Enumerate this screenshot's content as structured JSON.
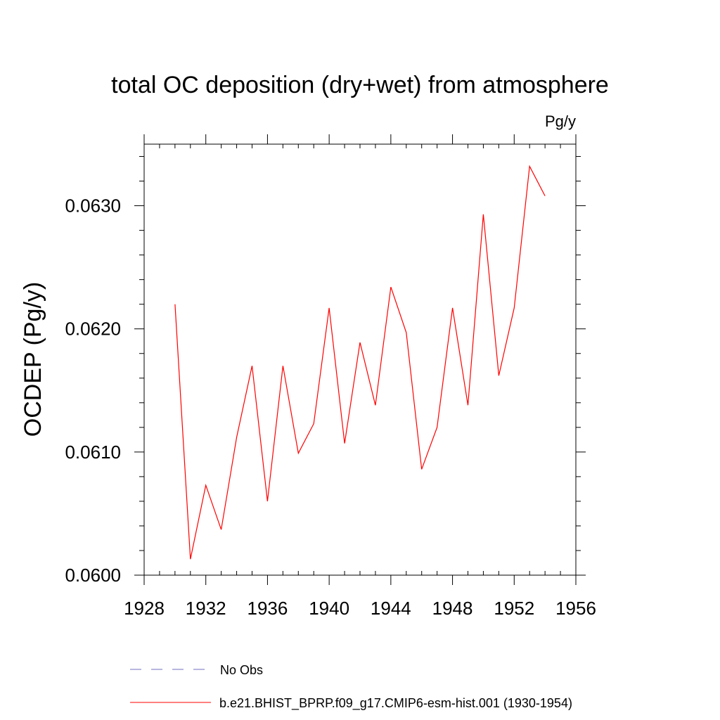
{
  "chart_data": {
    "type": "line",
    "title": "total OC deposition (dry+wet) from atmosphere",
    "units": "Pg/y",
    "xlabel": "",
    "ylabel": "OCDEP  (Pg/y)",
    "xlim": [
      1928,
      1956
    ],
    "ylim": [
      0.06,
      0.0635
    ],
    "x_ticks": [
      1928,
      1932,
      1936,
      1940,
      1944,
      1948,
      1952,
      1956
    ],
    "x_tick_labels": [
      "1928",
      "1932",
      "1936",
      "1940",
      "1944",
      "1948",
      "1952",
      "1956"
    ],
    "y_ticks": [
      0.06,
      0.061,
      0.062,
      0.063
    ],
    "y_tick_labels": [
      "0.0600",
      "0.0610",
      "0.0620",
      "0.0630"
    ],
    "series": [
      {
        "name": "No Obs",
        "color": "#6f6fbf",
        "style": "dashed",
        "x": [],
        "values": []
      },
      {
        "name": "b.e21.BHIST_BPRP.f09_g17.CMIP6-esm-hist.001 (1930-1954)",
        "color": "#ff0000",
        "style": "solid",
        "x": [
          1930,
          1931,
          1932,
          1933,
          1934,
          1935,
          1936,
          1937,
          1938,
          1939,
          1940,
          1941,
          1942,
          1943,
          1944,
          1945,
          1946,
          1947,
          1948,
          1949,
          1950,
          1951,
          1952,
          1953,
          1954
        ],
        "values": [
          0.0622,
          0.06013,
          0.06073,
          0.06037,
          0.06112,
          0.0617,
          0.0606,
          0.0617,
          0.06099,
          0.06123,
          0.06217,
          0.06107,
          0.06189,
          0.06138,
          0.06234,
          0.06197,
          0.06086,
          0.0612,
          0.06217,
          0.06138,
          0.06293,
          0.06162,
          0.06217,
          0.06332,
          0.06308
        ]
      }
    ],
    "legend": {
      "placement": "bottom",
      "entries": [
        "No Obs",
        "b.e21.BHIST_BPRP.f09_g17.CMIP6-esm-hist.001 (1930-1954)"
      ]
    }
  }
}
